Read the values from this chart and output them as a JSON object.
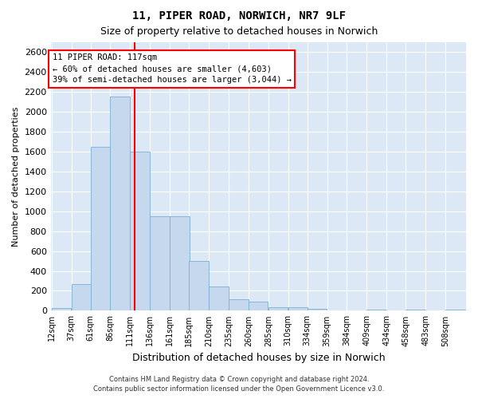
{
  "title1": "11, PIPER ROAD, NORWICH, NR7 9LF",
  "title2": "Size of property relative to detached houses in Norwich",
  "xlabel": "Distribution of detached houses by size in Norwich",
  "ylabel": "Number of detached properties",
  "annotation_title": "11 PIPER ROAD: 117sqm",
  "annotation_line1": "← 60% of detached houses are smaller (4,603)",
  "annotation_line2": "39% of semi-detached houses are larger (3,044) →",
  "footer1": "Contains HM Land Registry data © Crown copyright and database right 2024.",
  "footer2": "Contains public sector information licensed under the Open Government Licence v3.0.",
  "bar_color": "#c5d8ed",
  "bar_edge_color": "#7aafd4",
  "marker_color": "red",
  "categories": [
    "12sqm",
    "37sqm",
    "61sqm",
    "86sqm",
    "111sqm",
    "136sqm",
    "161sqm",
    "185sqm",
    "210sqm",
    "235sqm",
    "260sqm",
    "285sqm",
    "310sqm",
    "334sqm",
    "359sqm",
    "384sqm",
    "409sqm",
    "434sqm",
    "458sqm",
    "483sqm",
    "508sqm"
  ],
  "bin_starts": [
    12,
    37,
    61,
    86,
    111,
    136,
    161,
    185,
    210,
    235,
    260,
    285,
    310,
    334,
    359,
    384,
    409,
    434,
    458,
    483,
    508
  ],
  "values": [
    30,
    270,
    1650,
    2150,
    1600,
    950,
    950,
    500,
    240,
    115,
    90,
    35,
    35,
    20,
    5,
    5,
    15,
    5,
    15,
    5,
    10
  ],
  "ylim": [
    0,
    2700
  ],
  "yticks": [
    0,
    200,
    400,
    600,
    800,
    1000,
    1200,
    1400,
    1600,
    1800,
    2000,
    2200,
    2400,
    2600
  ],
  "bin_width": 25,
  "property_sqm": 117,
  "background_color": "#dce8f5",
  "grid_color": "#ffffff",
  "title1_fontsize": 10,
  "title2_fontsize": 9,
  "ylabel_fontsize": 8,
  "xlabel_fontsize": 9
}
